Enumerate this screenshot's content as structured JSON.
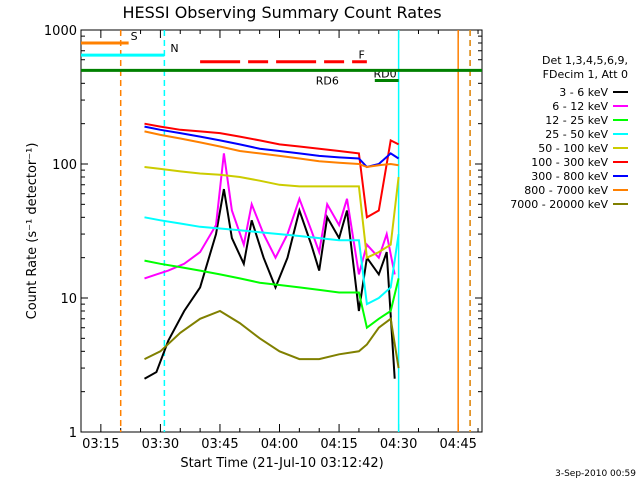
{
  "chart_data": {
    "type": "line",
    "title": "HESSI Observing Summary Count Rates",
    "xlabel": "Start Time (21-Jul-10 03:12:42)",
    "ylabel": "Count Rate (s⁻¹ detector⁻¹)",
    "y_scale": "log",
    "ylim": [
      1,
      1000
    ],
    "xlim": [
      "03:10",
      "04:51"
    ],
    "x_ticks": [
      "03:15",
      "03:30",
      "03:45",
      "04:00",
      "04:15",
      "04:30",
      "04:45"
    ],
    "y_ticks": [
      "1",
      "10",
      "100",
      "1000"
    ],
    "footer": "3-Sep-2010 00:59",
    "legend_header": [
      "Det 1,3,4,5,6,9,",
      "FDecim 1, Att 0"
    ],
    "legend_position": "right",
    "series": [
      {
        "name": "3 - 6 keV",
        "color": "#000000",
        "x": [
          "03:26",
          "03:29",
          "03:32",
          "03:36",
          "03:40",
          "03:44",
          "03:46",
          "03:48",
          "03:51",
          "03:53",
          "03:56",
          "03:59",
          "04:02",
          "04:05",
          "04:08",
          "04:10",
          "04:12",
          "04:15",
          "04:17",
          "04:20",
          "04:22",
          "04:25",
          "04:27",
          "04:29"
        ],
        "values": [
          2.5,
          2.8,
          4.8,
          8,
          12,
          30,
          65,
          28,
          18,
          38,
          20,
          12,
          20,
          45,
          25,
          16,
          40,
          28,
          45,
          8,
          20,
          15,
          22,
          2.5
        ]
      },
      {
        "name": "6 - 12 keV",
        "color": "#ff00ff",
        "x": [
          "03:26",
          "03:29",
          "03:32",
          "03:36",
          "03:40",
          "03:44",
          "03:46",
          "03:48",
          "03:51",
          "03:53",
          "03:56",
          "03:59",
          "04:02",
          "04:05",
          "04:08",
          "04:10",
          "04:12",
          "04:15",
          "04:17",
          "04:20",
          "04:22",
          "04:25",
          "04:27",
          "04:29"
        ],
        "values": [
          14,
          15,
          16,
          18,
          22,
          35,
          120,
          45,
          25,
          50,
          30,
          20,
          30,
          55,
          32,
          22,
          50,
          35,
          55,
          15,
          25,
          20,
          30,
          15
        ]
      },
      {
        "name": "12 - 25 keV",
        "color": "#00ff00",
        "x": [
          "03:26",
          "03:30",
          "03:35",
          "03:40",
          "03:45",
          "03:50",
          "03:55",
          "04:00",
          "04:05",
          "04:10",
          "04:15",
          "04:20",
          "04:22",
          "04:25",
          "04:28",
          "04:30"
        ],
        "values": [
          19,
          18,
          17,
          16,
          15,
          14,
          13,
          12.5,
          12,
          11.5,
          11,
          11,
          6,
          7,
          8,
          14
        ]
      },
      {
        "name": "25 - 50 keV",
        "color": "#00ffff",
        "x": [
          "03:26",
          "03:30",
          "03:35",
          "03:40",
          "03:45",
          "03:50",
          "03:55",
          "04:00",
          "04:05",
          "04:10",
          "04:15",
          "04:20",
          "04:22",
          "04:25",
          "04:28",
          "04:30"
        ],
        "values": [
          40,
          38,
          36,
          34,
          33,
          32,
          31,
          30,
          29,
          28,
          27,
          27,
          9,
          10,
          12,
          30
        ]
      },
      {
        "name": "50 - 100 keV",
        "color": "#cccc00",
        "x": [
          "03:26",
          "03:30",
          "03:35",
          "03:40",
          "03:45",
          "03:50",
          "03:55",
          "04:00",
          "04:05",
          "04:10",
          "04:15",
          "04:20",
          "04:22",
          "04:25",
          "04:28",
          "04:30"
        ],
        "values": [
          95,
          92,
          88,
          85,
          83,
          80,
          75,
          70,
          68,
          68,
          68,
          68,
          20,
          22,
          25,
          80
        ]
      },
      {
        "name": "100 - 300 keV",
        "color": "#ff0000",
        "x": [
          "03:26",
          "03:30",
          "03:35",
          "03:40",
          "03:45",
          "03:50",
          "03:55",
          "04:00",
          "04:05",
          "04:10",
          "04:15",
          "04:20",
          "04:22",
          "04:25",
          "04:28",
          "04:30"
        ],
        "values": [
          200,
          190,
          180,
          175,
          170,
          160,
          150,
          140,
          135,
          130,
          125,
          120,
          40,
          45,
          150,
          140
        ]
      },
      {
        "name": "300 - 800 keV",
        "color": "#0000ff",
        "x": [
          "03:26",
          "03:30",
          "03:35",
          "03:40",
          "03:45",
          "03:50",
          "03:55",
          "04:00",
          "04:05",
          "04:10",
          "04:15",
          "04:20",
          "04:22",
          "04:25",
          "04:28",
          "04:30"
        ],
        "values": [
          190,
          180,
          170,
          160,
          150,
          140,
          130,
          125,
          120,
          115,
          112,
          110,
          95,
          100,
          120,
          110
        ]
      },
      {
        "name": "800 - 7000 keV",
        "color": "#ff8000",
        "x": [
          "03:26",
          "03:30",
          "03:35",
          "03:40",
          "03:45",
          "03:50",
          "03:55",
          "04:00",
          "04:05",
          "04:10",
          "04:15",
          "04:20",
          "04:22",
          "04:25",
          "04:28",
          "04:30"
        ],
        "values": [
          175,
          165,
          155,
          145,
          135,
          125,
          120,
          115,
          110,
          105,
          102,
          100,
          95,
          98,
          100,
          98
        ]
      },
      {
        "name": "7000 - 20000 keV",
        "color": "#808000",
        "x": [
          "03:26",
          "03:30",
          "03:35",
          "03:40",
          "03:45",
          "03:50",
          "03:55",
          "04:00",
          "04:05",
          "04:10",
          "04:15",
          "04:20",
          "04:22",
          "04:25",
          "04:28",
          "04:30"
        ],
        "values": [
          3.5,
          4,
          5.5,
          7,
          8,
          6.5,
          5,
          4,
          3.5,
          3.5,
          3.8,
          4,
          4.5,
          6,
          7,
          3
        ]
      }
    ],
    "annotations": [
      {
        "label": "S",
        "color": "#ff8000",
        "x_start": "03:10",
        "x_end": "03:22",
        "y": 800
      },
      {
        "label": "N",
        "color": "#00ffff",
        "x_start": "03:10",
        "x_end": "03:31",
        "y": 650
      },
      {
        "label": "F",
        "color": "#ff0000",
        "x_start": "03:40",
        "x_end": "04:22",
        "y": 580
      },
      {
        "label": "RD0",
        "color": "#008000",
        "x_start": "04:24",
        "x_end": "04:30",
        "y": 420
      },
      {
        "label": "RD6",
        "color": "#008000",
        "x_start": "03:10",
        "x_end": "04:51",
        "y": 500
      }
    ],
    "vertical_markers": [
      {
        "x": "03:20",
        "color": "#ff8000",
        "style": "dashed"
      },
      {
        "x": "03:31",
        "color": "#00ffff",
        "style": "dashed"
      },
      {
        "x": "04:30",
        "color": "#00ffff",
        "style": "solid"
      },
      {
        "x": "04:45",
        "color": "#ff8000",
        "style": "solid"
      },
      {
        "x": "04:48",
        "color": "#00ffff",
        "style": "dashed"
      },
      {
        "x": "04:48",
        "color": "#ff8000",
        "style": "dashed"
      }
    ]
  }
}
